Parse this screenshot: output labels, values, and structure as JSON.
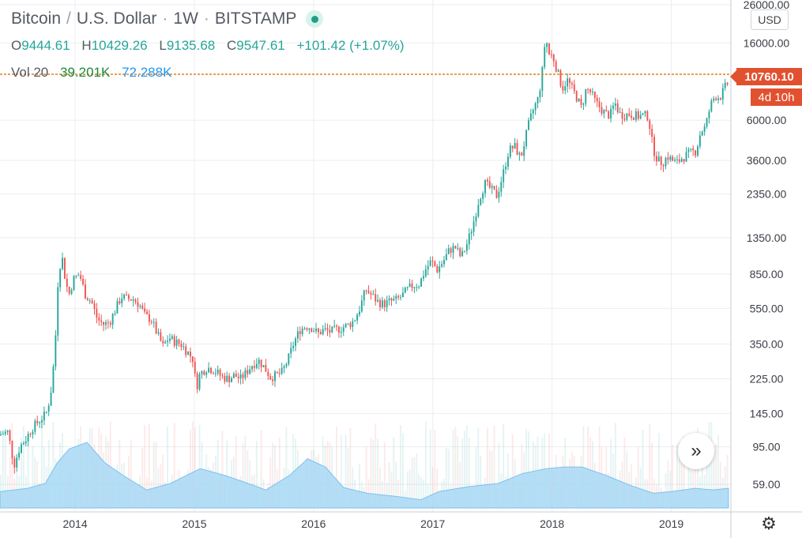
{
  "header": {
    "symbol": "Bitcoin",
    "quote": "U.S. Dollar",
    "interval": "1W",
    "exchange": "BITSTAMP",
    "separator_slash": "/",
    "separator_dot": "·"
  },
  "ohlc": {
    "open_label": "O",
    "open": "9444.61",
    "high_label": "H",
    "high": "10429.26",
    "low_label": "L",
    "low": "9135.68",
    "close_label": "C",
    "close": "9547.61",
    "change": "+101.42 (+1.07%)"
  },
  "volume": {
    "label": "Vol 20",
    "value": "39.201K",
    "ma": "72.288K"
  },
  "currency": "USD",
  "last_price": "10760.10",
  "countdown": "4d 10h",
  "icons": {
    "live": "live-dot-icon",
    "scroll": "scroll-right-icon",
    "settings": "settings-gear-icon"
  },
  "colors": {
    "up": "#26a69a",
    "down": "#ef5350",
    "price_line": "#e0801f",
    "volume_fill": "#a8d8f5",
    "price_tag": "#e2512f"
  },
  "chart_data": {
    "type": "candlestick",
    "title": "Bitcoin / U.S. Dollar · 1W · BITSTAMP",
    "y_scale": "log",
    "ylim": [
      55,
      26000
    ],
    "y_ticks": [
      26000,
      16000,
      6000,
      3600,
      2350,
      1350,
      850,
      550,
      350,
      225,
      145,
      95,
      59
    ],
    "y_tick_labels": [
      "26000.00",
      "16000.00",
      "6000.00",
      "3600.00",
      "2350.00",
      "1350.00",
      "850.00",
      "550.00",
      "350.00",
      "225.00",
      "145.00",
      "95.00",
      "59.00"
    ],
    "x_ticks": [
      "2014",
      "2015",
      "2016",
      "2017",
      "2018",
      "2019"
    ],
    "x_range": [
      2013.37,
      2019.5
    ],
    "last_price": 10760.1,
    "price_path": [
      [
        2013.37,
        110
      ],
      [
        2013.45,
        115
      ],
      [
        2013.5,
        75
      ],
      [
        2013.55,
        95
      ],
      [
        2013.6,
        105
      ],
      [
        2013.65,
        120
      ],
      [
        2013.7,
        130
      ],
      [
        2013.75,
        140
      ],
      [
        2013.78,
        150
      ],
      [
        2013.82,
        210
      ],
      [
        2013.85,
        400
      ],
      [
        2013.87,
        800
      ],
      [
        2013.9,
        1100
      ],
      [
        2013.93,
        800
      ],
      [
        2013.96,
        650
      ],
      [
        2014.0,
        800
      ],
      [
        2014.05,
        850
      ],
      [
        2014.1,
        650
      ],
      [
        2014.15,
        600
      ],
      [
        2014.2,
        480
      ],
      [
        2014.25,
        450
      ],
      [
        2014.3,
        460
      ],
      [
        2014.35,
        540
      ],
      [
        2014.4,
        640
      ],
      [
        2014.45,
        620
      ],
      [
        2014.5,
        620
      ],
      [
        2014.55,
        580
      ],
      [
        2014.6,
        500
      ],
      [
        2014.65,
        480
      ],
      [
        2014.7,
        400
      ],
      [
        2014.75,
        340
      ],
      [
        2014.8,
        380
      ],
      [
        2014.85,
        360
      ],
      [
        2014.9,
        350
      ],
      [
        2014.95,
        320
      ],
      [
        2015.0,
        290
      ],
      [
        2015.03,
        200
      ],
      [
        2015.06,
        240
      ],
      [
        2015.12,
        260
      ],
      [
        2015.18,
        250
      ],
      [
        2015.25,
        230
      ],
      [
        2015.3,
        225
      ],
      [
        2015.35,
        235
      ],
      [
        2015.4,
        225
      ],
      [
        2015.45,
        245
      ],
      [
        2015.5,
        270
      ],
      [
        2015.55,
        285
      ],
      [
        2015.6,
        260
      ],
      [
        2015.65,
        230
      ],
      [
        2015.7,
        235
      ],
      [
        2015.75,
        245
      ],
      [
        2015.8,
        290
      ],
      [
        2015.85,
        360
      ],
      [
        2015.9,
        420
      ],
      [
        2015.95,
        440
      ],
      [
        2016.0,
        430
      ],
      [
        2016.05,
        400
      ],
      [
        2016.1,
        420
      ],
      [
        2016.15,
        410
      ],
      [
        2016.2,
        420
      ],
      [
        2016.25,
        430
      ],
      [
        2016.3,
        445
      ],
      [
        2016.35,
        470
      ],
      [
        2016.4,
        550
      ],
      [
        2016.45,
        700
      ],
      [
        2016.5,
        650
      ],
      [
        2016.55,
        600
      ],
      [
        2016.6,
        580
      ],
      [
        2016.65,
        600
      ],
      [
        2016.7,
        610
      ],
      [
        2016.75,
        640
      ],
      [
        2016.8,
        700
      ],
      [
        2016.85,
        740
      ],
      [
        2016.9,
        750
      ],
      [
        2016.95,
        900
      ],
      [
        2017.0,
        1000
      ],
      [
        2017.05,
        900
      ],
      [
        2017.1,
        1000
      ],
      [
        2017.15,
        1150
      ],
      [
        2017.2,
        1200
      ],
      [
        2017.25,
        1050
      ],
      [
        2017.3,
        1250
      ],
      [
        2017.35,
        1600
      ],
      [
        2017.4,
        2200
      ],
      [
        2017.45,
        2700
      ],
      [
        2017.5,
        2500
      ],
      [
        2017.55,
        2300
      ],
      [
        2017.6,
        3000
      ],
      [
        2017.65,
        4100
      ],
      [
        2017.7,
        4300
      ],
      [
        2017.75,
        3700
      ],
      [
        2017.78,
        4500
      ],
      [
        2017.82,
        5800
      ],
      [
        2017.86,
        7000
      ],
      [
        2017.9,
        8000
      ],
      [
        2017.93,
        11000
      ],
      [
        2017.96,
        18000
      ],
      [
        2017.98,
        14000
      ],
      [
        2018.02,
        13500
      ],
      [
        2018.06,
        11000
      ],
      [
        2018.1,
        9000
      ],
      [
        2018.14,
        10000
      ],
      [
        2018.18,
        9000
      ],
      [
        2018.22,
        8000
      ],
      [
        2018.26,
        7000
      ],
      [
        2018.3,
        9000
      ],
      [
        2018.34,
        8500
      ],
      [
        2018.38,
        7500
      ],
      [
        2018.42,
        7000
      ],
      [
        2018.46,
        6500
      ],
      [
        2018.5,
        6400
      ],
      [
        2018.54,
        7500
      ],
      [
        2018.58,
        6500
      ],
      [
        2018.62,
        6400
      ],
      [
        2018.66,
        6500
      ],
      [
        2018.7,
        6400
      ],
      [
        2018.74,
        6300
      ],
      [
        2018.78,
        6400
      ],
      [
        2018.82,
        6300
      ],
      [
        2018.86,
        4200
      ],
      [
        2018.9,
        3600
      ],
      [
        2018.94,
        3500
      ],
      [
        2018.98,
        3800
      ],
      [
        2019.02,
        3600
      ],
      [
        2019.06,
        3500
      ],
      [
        2019.1,
        3700
      ],
      [
        2019.14,
        3850
      ],
      [
        2019.18,
        4000
      ],
      [
        2019.22,
        4050
      ],
      [
        2019.26,
        5200
      ],
      [
        2019.3,
        5500
      ],
      [
        2019.34,
        7200
      ],
      [
        2019.38,
        8200
      ],
      [
        2019.42,
        8000
      ],
      [
        2019.46,
        9000
      ],
      [
        2019.48,
        9547.61
      ]
    ],
    "volume_ma": [
      [
        2013.37,
        0.2
      ],
      [
        2013.6,
        0.24
      ],
      [
        2013.75,
        0.3
      ],
      [
        2013.85,
        0.55
      ],
      [
        2013.95,
        0.72
      ],
      [
        2014.1,
        0.8
      ],
      [
        2014.25,
        0.55
      ],
      [
        2014.4,
        0.4
      ],
      [
        2014.6,
        0.22
      ],
      [
        2014.8,
        0.3
      ],
      [
        2015.05,
        0.48
      ],
      [
        2015.25,
        0.4
      ],
      [
        2015.45,
        0.3
      ],
      [
        2015.6,
        0.22
      ],
      [
        2015.8,
        0.4
      ],
      [
        2015.95,
        0.6
      ],
      [
        2016.1,
        0.5
      ],
      [
        2016.25,
        0.25
      ],
      [
        2016.45,
        0.18
      ],
      [
        2016.7,
        0.14
      ],
      [
        2016.9,
        0.1
      ],
      [
        2017.05,
        0.2
      ],
      [
        2017.3,
        0.26
      ],
      [
        2017.55,
        0.3
      ],
      [
        2017.75,
        0.42
      ],
      [
        2017.95,
        0.48
      ],
      [
        2018.1,
        0.5
      ],
      [
        2018.25,
        0.5
      ],
      [
        2018.45,
        0.4
      ],
      [
        2018.65,
        0.28
      ],
      [
        2018.85,
        0.18
      ],
      [
        2019.0,
        0.2
      ],
      [
        2019.2,
        0.24
      ],
      [
        2019.35,
        0.22
      ],
      [
        2019.48,
        0.24
      ]
    ]
  }
}
